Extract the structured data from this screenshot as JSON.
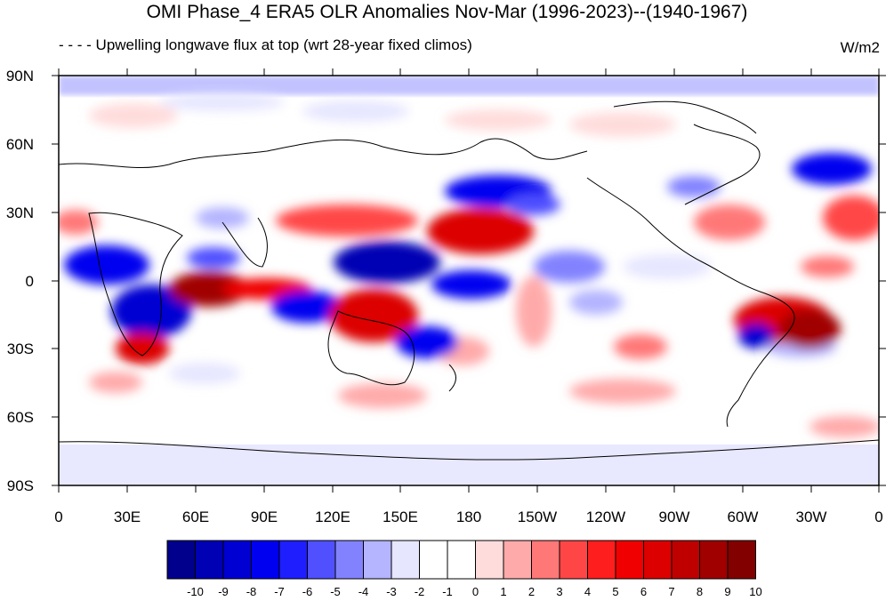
{
  "title": "OMI Phase_4 ERA5 OLR Anomalies Nov-Mar (1996-2023)--(1940-1967)",
  "subtitle": "- - - - Upwelling longwave flux at top    (wrt 28-year fixed climos)",
  "units": "W/m2",
  "map": {
    "lat_labels": [
      "90N",
      "60N",
      "30N",
      "0",
      "30S",
      "60S",
      "90S"
    ],
    "lon_labels": [
      "0",
      "30E",
      "60E",
      "90E",
      "120E",
      "150E",
      "180",
      "150W",
      "120W",
      "90W",
      "60W",
      "30W",
      "0"
    ]
  },
  "colorbar": {
    "colors": [
      "#00008c",
      "#0000b4",
      "#0000d2",
      "#0000f0",
      "#1e1eff",
      "#5050ff",
      "#8282ff",
      "#b4b4ff",
      "#e6e6ff",
      "#ffffff",
      "#ffffff",
      "#ffdcdc",
      "#ffaaaa",
      "#ff7878",
      "#ff4646",
      "#ff1e1e",
      "#f00000",
      "#dc0000",
      "#be0000",
      "#a00000",
      "#820000"
    ],
    "labels": [
      "-10",
      "-9",
      "-8",
      "-7",
      "-6",
      "-5",
      "-4",
      "-3",
      "-2",
      "-1",
      "0",
      "1",
      "2",
      "3",
      "4",
      "5",
      "6",
      "7",
      "8",
      "9",
      "10"
    ]
  }
}
